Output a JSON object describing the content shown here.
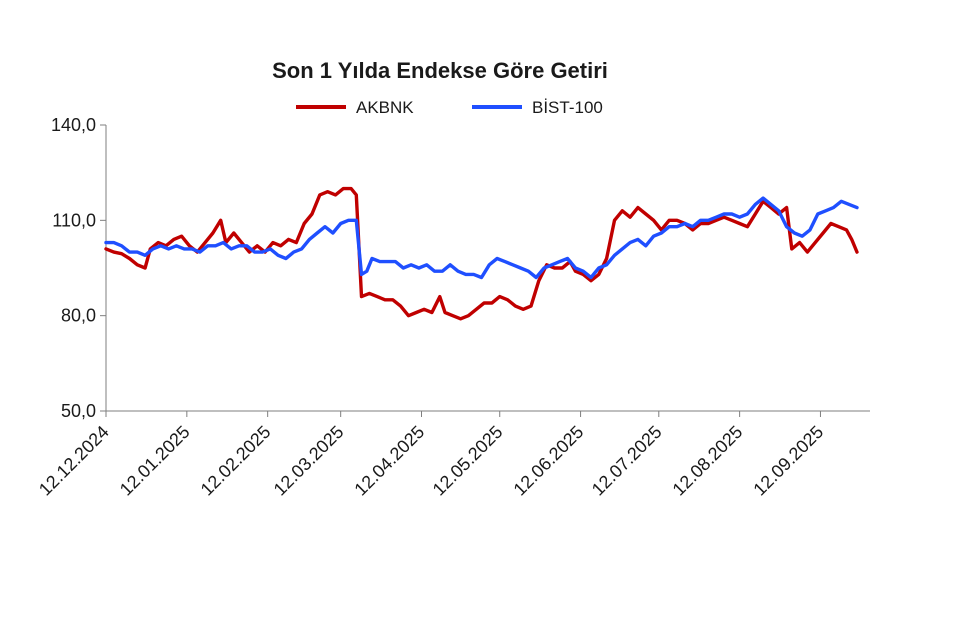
{
  "chart_data": {
    "type": "line",
    "title": "Son 1 Yılda Endekse Göre Getiri",
    "xlabel": "",
    "ylabel": "",
    "ylim": [
      50,
      140
    ],
    "yticks": [
      50,
      80,
      110,
      140
    ],
    "ytick_labels": [
      "50,0",
      "80,0",
      "110,0",
      "140,0"
    ],
    "x_start": "2024-12-12",
    "x_end": "2025-10-01",
    "xticks": [
      "2024-12-12",
      "2025-01-12",
      "2025-02-12",
      "2025-03-12",
      "2025-04-12",
      "2025-05-12",
      "2025-06-12",
      "2025-07-12",
      "2025-08-12",
      "2025-09-12"
    ],
    "xtick_labels": [
      "12.12.2024",
      "12.01.2025",
      "12.02.2025",
      "12.03.2025",
      "12.04.2025",
      "12.05.2025",
      "12.06.2025",
      "12.07.2025",
      "12.08.2025",
      "12.09.2025"
    ],
    "legend_position": "top",
    "grid": false,
    "series": [
      {
        "name": "AKBNK",
        "color": "#c00000",
        "points": [
          [
            "2024-12-12",
            101
          ],
          [
            "2024-12-15",
            100
          ],
          [
            "2024-12-18",
            99.5
          ],
          [
            "2024-12-21",
            98
          ],
          [
            "2024-12-24",
            96
          ],
          [
            "2024-12-27",
            95
          ],
          [
            "2024-12-29",
            101
          ],
          [
            "2025-01-01",
            103
          ],
          [
            "2025-01-04",
            102
          ],
          [
            "2025-01-07",
            104
          ],
          [
            "2025-01-10",
            105
          ],
          [
            "2025-01-13",
            102
          ],
          [
            "2025-01-16",
            100
          ],
          [
            "2025-01-19",
            103
          ],
          [
            "2025-01-22",
            106
          ],
          [
            "2025-01-25",
            110
          ],
          [
            "2025-01-27",
            103
          ],
          [
            "2025-01-30",
            106
          ],
          [
            "2025-02-02",
            103
          ],
          [
            "2025-02-05",
            100
          ],
          [
            "2025-02-08",
            102
          ],
          [
            "2025-02-11",
            100
          ],
          [
            "2025-02-14",
            103
          ],
          [
            "2025-02-17",
            102
          ],
          [
            "2025-02-20",
            104
          ],
          [
            "2025-02-23",
            103
          ],
          [
            "2025-02-26",
            109
          ],
          [
            "2025-03-01",
            112
          ],
          [
            "2025-03-04",
            118
          ],
          [
            "2025-03-07",
            119
          ],
          [
            "2025-03-10",
            118
          ],
          [
            "2025-03-13",
            120
          ],
          [
            "2025-03-16",
            120
          ],
          [
            "2025-03-18",
            118
          ],
          [
            "2025-03-20",
            86
          ],
          [
            "2025-03-23",
            87
          ],
          [
            "2025-03-26",
            86
          ],
          [
            "2025-03-29",
            85
          ],
          [
            "2025-04-01",
            85
          ],
          [
            "2025-04-04",
            83
          ],
          [
            "2025-04-07",
            80
          ],
          [
            "2025-04-10",
            81
          ],
          [
            "2025-04-13",
            82
          ],
          [
            "2025-04-16",
            81
          ],
          [
            "2025-04-19",
            86
          ],
          [
            "2025-04-21",
            81
          ],
          [
            "2025-04-24",
            80
          ],
          [
            "2025-04-27",
            79
          ],
          [
            "2025-04-30",
            80
          ],
          [
            "2025-05-03",
            82
          ],
          [
            "2025-05-06",
            84
          ],
          [
            "2025-05-09",
            84
          ],
          [
            "2025-05-12",
            86
          ],
          [
            "2025-05-15",
            85
          ],
          [
            "2025-05-18",
            83
          ],
          [
            "2025-05-21",
            82
          ],
          [
            "2025-05-24",
            83
          ],
          [
            "2025-05-27",
            91
          ],
          [
            "2025-05-30",
            96
          ],
          [
            "2025-06-02",
            95
          ],
          [
            "2025-06-05",
            95
          ],
          [
            "2025-06-08",
            97
          ],
          [
            "2025-06-10",
            94
          ],
          [
            "2025-06-13",
            93
          ],
          [
            "2025-06-16",
            91
          ],
          [
            "2025-06-19",
            93
          ],
          [
            "2025-06-22",
            98
          ],
          [
            "2025-06-25",
            110
          ],
          [
            "2025-06-28",
            113
          ],
          [
            "2025-07-01",
            111
          ],
          [
            "2025-07-04",
            114
          ],
          [
            "2025-07-07",
            112
          ],
          [
            "2025-07-10",
            110
          ],
          [
            "2025-07-13",
            107
          ],
          [
            "2025-07-16",
            110
          ],
          [
            "2025-07-19",
            110
          ],
          [
            "2025-07-22",
            109
          ],
          [
            "2025-07-25",
            107
          ],
          [
            "2025-07-28",
            109
          ],
          [
            "2025-07-31",
            109
          ],
          [
            "2025-08-03",
            110
          ],
          [
            "2025-08-06",
            111
          ],
          [
            "2025-08-09",
            110
          ],
          [
            "2025-08-12",
            109
          ],
          [
            "2025-08-15",
            108
          ],
          [
            "2025-08-18",
            112
          ],
          [
            "2025-08-21",
            116
          ],
          [
            "2025-08-24",
            114
          ],
          [
            "2025-08-27",
            112
          ],
          [
            "2025-08-30",
            114
          ],
          [
            "2025-09-01",
            101
          ],
          [
            "2025-09-04",
            103
          ],
          [
            "2025-09-07",
            100
          ],
          [
            "2025-09-10",
            103
          ],
          [
            "2025-09-13",
            106
          ],
          [
            "2025-09-16",
            109
          ],
          [
            "2025-09-19",
            108
          ],
          [
            "2025-09-22",
            107
          ],
          [
            "2025-09-24",
            104
          ],
          [
            "2025-09-26",
            100
          ]
        ]
      },
      {
        "name": "BİST-100",
        "color": "#1f4fff",
        "points": [
          [
            "2024-12-12",
            103
          ],
          [
            "2024-12-15",
            103
          ],
          [
            "2024-12-18",
            102
          ],
          [
            "2024-12-21",
            100
          ],
          [
            "2024-12-24",
            100
          ],
          [
            "2024-12-27",
            99
          ],
          [
            "2024-12-30",
            101
          ],
          [
            "2025-01-02",
            102
          ],
          [
            "2025-01-05",
            101
          ],
          [
            "2025-01-08",
            102
          ],
          [
            "2025-01-11",
            101
          ],
          [
            "2025-01-14",
            101
          ],
          [
            "2025-01-17",
            100
          ],
          [
            "2025-01-20",
            102
          ],
          [
            "2025-01-23",
            102
          ],
          [
            "2025-01-26",
            103
          ],
          [
            "2025-01-29",
            101
          ],
          [
            "2025-02-01",
            102
          ],
          [
            "2025-02-04",
            102
          ],
          [
            "2025-02-07",
            100
          ],
          [
            "2025-02-10",
            100
          ],
          [
            "2025-02-13",
            101
          ],
          [
            "2025-02-16",
            99
          ],
          [
            "2025-02-19",
            98
          ],
          [
            "2025-02-22",
            100
          ],
          [
            "2025-02-25",
            101
          ],
          [
            "2025-02-28",
            104
          ],
          [
            "2025-03-03",
            106
          ],
          [
            "2025-03-06",
            108
          ],
          [
            "2025-03-09",
            106
          ],
          [
            "2025-03-12",
            109
          ],
          [
            "2025-03-15",
            110
          ],
          [
            "2025-03-18",
            110
          ],
          [
            "2025-03-20",
            93
          ],
          [
            "2025-03-22",
            94
          ],
          [
            "2025-03-24",
            98
          ],
          [
            "2025-03-27",
            97
          ],
          [
            "2025-03-30",
            97
          ],
          [
            "2025-04-02",
            97
          ],
          [
            "2025-04-05",
            95
          ],
          [
            "2025-04-08",
            96
          ],
          [
            "2025-04-11",
            95
          ],
          [
            "2025-04-14",
            96
          ],
          [
            "2025-04-17",
            94
          ],
          [
            "2025-04-20",
            94
          ],
          [
            "2025-04-23",
            96
          ],
          [
            "2025-04-26",
            94
          ],
          [
            "2025-04-29",
            93
          ],
          [
            "2025-05-02",
            93
          ],
          [
            "2025-05-05",
            92
          ],
          [
            "2025-05-08",
            96
          ],
          [
            "2025-05-11",
            98
          ],
          [
            "2025-05-14",
            97
          ],
          [
            "2025-05-17",
            96
          ],
          [
            "2025-05-20",
            95
          ],
          [
            "2025-05-23",
            94
          ],
          [
            "2025-05-26",
            92
          ],
          [
            "2025-05-29",
            95
          ],
          [
            "2025-06-01",
            96
          ],
          [
            "2025-06-04",
            97
          ],
          [
            "2025-06-07",
            98
          ],
          [
            "2025-06-10",
            95
          ],
          [
            "2025-06-13",
            94
          ],
          [
            "2025-06-16",
            92
          ],
          [
            "2025-06-19",
            95
          ],
          [
            "2025-06-22",
            96
          ],
          [
            "2025-06-25",
            99
          ],
          [
            "2025-06-28",
            101
          ],
          [
            "2025-07-01",
            103
          ],
          [
            "2025-07-04",
            104
          ],
          [
            "2025-07-07",
            102
          ],
          [
            "2025-07-10",
            105
          ],
          [
            "2025-07-13",
            106
          ],
          [
            "2025-07-16",
            108
          ],
          [
            "2025-07-19",
            108
          ],
          [
            "2025-07-22",
            109
          ],
          [
            "2025-07-25",
            108
          ],
          [
            "2025-07-28",
            110
          ],
          [
            "2025-07-31",
            110
          ],
          [
            "2025-08-03",
            111
          ],
          [
            "2025-08-06",
            112
          ],
          [
            "2025-08-09",
            112
          ],
          [
            "2025-08-12",
            111
          ],
          [
            "2025-08-15",
            112
          ],
          [
            "2025-08-18",
            115
          ],
          [
            "2025-08-21",
            117
          ],
          [
            "2025-08-24",
            115
          ],
          [
            "2025-08-27",
            113
          ],
          [
            "2025-08-30",
            108
          ],
          [
            "2025-09-02",
            106
          ],
          [
            "2025-09-05",
            105
          ],
          [
            "2025-09-08",
            107
          ],
          [
            "2025-09-11",
            112
          ],
          [
            "2025-09-14",
            113
          ],
          [
            "2025-09-17",
            114
          ],
          [
            "2025-09-20",
            116
          ],
          [
            "2025-09-23",
            115
          ],
          [
            "2025-09-26",
            114
          ]
        ]
      }
    ]
  }
}
